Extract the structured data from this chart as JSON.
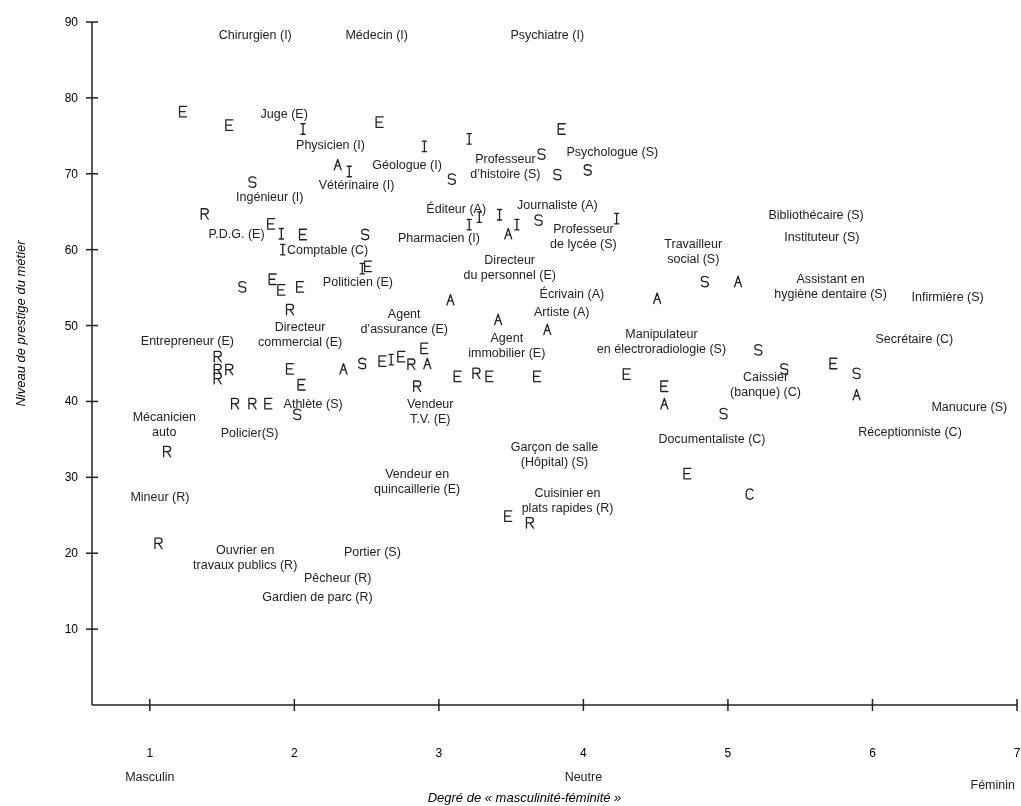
{
  "chart_data": {
    "type": "scatter",
    "xlabel": "Degré de « masculinité-féminité »",
    "ylabel": "Niveau de prestige du métier",
    "xlim": [
      0.6,
      7
    ],
    "xticks": [
      1,
      2,
      3,
      4,
      5,
      6,
      7
    ],
    "ylim": [
      0,
      90
    ],
    "yticks": [
      10,
      20,
      30,
      40,
      50,
      60,
      70,
      80,
      90
    ],
    "grid": false,
    "series": [
      {
        "color": "#222222",
        "x": [
          1.38,
          1.97,
          1.47,
          1.47,
          1.55,
          1.47,
          2.81,
          1.59,
          1.71,
          2.85,
          1.12,
          1.06,
          3.26,
          3.63
        ],
        "values": [
          64.7,
          52.1,
          45.9,
          44.2,
          44.2,
          43.0,
          44.9,
          39.7,
          39.7,
          42.0,
          33.4,
          21.3,
          43.7,
          24.0
        ]
      },
      {
        "color": "#222222",
        "x": [
          2.06,
          2.9,
          2.38,
          1.91,
          1.92,
          2.47,
          2.67,
          3.21,
          3.28,
          3.42,
          3.21,
          3.54,
          4.23
        ],
        "values": [
          75.9,
          73.6,
          70.3,
          62.1,
          60.0,
          57.5,
          45.5,
          74.6,
          64.3,
          64.6,
          63.3,
          63.3,
          64.1
        ]
      },
      {
        "color": "#222222",
        "x": [
          2.3,
          3.48,
          5.07,
          3.08,
          4.51,
          2.34,
          2.92,
          3.41,
          3.75,
          4.56,
          5.89
        ],
        "values": [
          71.2,
          62.1,
          55.8,
          53.4,
          53.6,
          44.3,
          45.0,
          50.8,
          49.5,
          39.7,
          40.9
        ]
      },
      {
        "color": "#222222",
        "x": [
          1.71,
          2.49,
          1.64,
          3.71,
          3.09,
          3.82,
          4.03,
          3.69,
          4.84,
          2.47,
          2.02,
          4.97,
          5.21,
          5.39,
          5.89
        ],
        "values": [
          68.9,
          62.0,
          55.1,
          72.6,
          69.3,
          69.9,
          70.5,
          63.9,
          55.8,
          45.0,
          38.3,
          38.4,
          46.8,
          44.3,
          43.7
        ]
      },
      {
        "color": "#222222",
        "x": [
          1.23,
          1.55,
          2.59,
          1.84,
          2.06,
          2.51,
          1.85,
          1.91,
          2.04,
          3.85,
          1.97,
          2.61,
          2.74,
          2.9,
          2.05,
          1.82,
          3.13,
          3.35,
          3.68,
          4.3,
          4.56,
          4.72,
          3.48,
          5.73
        ],
        "values": [
          78.2,
          76.4,
          76.8,
          63.4,
          62.0,
          57.8,
          56.1,
          54.7,
          55.1,
          75.9,
          44.3,
          45.3,
          45.9,
          47.0,
          42.2,
          39.7,
          43.3,
          43.3,
          43.3,
          43.6,
          42.0,
          30.5,
          24.9,
          45.0
        ]
      },
      {
        "color": "#222222",
        "x": [
          5.15
        ],
        "values": [
          27.8
        ]
      }
    ],
    "annotations": [
      "Chirurgien (I)",
      "Médecin (I)",
      "Psychiatre (I)",
      "Juge (E)",
      "Physicien (I)",
      "Géologue (I)",
      "Vétérinaire (I)",
      "Professeur\nd’histoire (S)",
      "Psychologue (S)",
      "Ingénieur (I)",
      "P.D.G. (E)",
      "Comptable (C)",
      "Éditeur (A)",
      "Pharmacien (I)",
      "Journaliste (A)",
      "Professeur\nde lycée (S)",
      "Directeur\ndu personnel (E)",
      "Travailleur\nsocial (S)",
      "Bibliothécaire (S)",
      "Instituteur (S)",
      "Assistant en\nhygiène dentaire (S)",
      "Infirmière (S)",
      "Politicien (E)",
      "Écrivain (A)",
      "Artiste (A)",
      "Agent\nd’assurance (E)",
      "Directeur\ncommercial (E)",
      "Entrepreneur (E)",
      "Agent\nimmobilier (E)",
      "Manipulateur\nen électroradiologie (S)",
      "Secrétaire (C)",
      "Caissier\n(banque) (C)",
      "Mécanicien\nauto",
      "Athlète (S)",
      "Policier(S)",
      "Vendeur\nT.V. (E)",
      "Garçon de salle\n(Hôpital) (S)",
      "Documentaliste (C)",
      "Manucure (S)",
      "Réceptionniste (C)",
      "Mineur (R)",
      "Vendeur en\nquincaillerie (E)",
      "Cuisinier en\nplats rapides (R)",
      "Ouvrier en\ntravaux publics (R)",
      "Portier (S)",
      "Pêcheur (R)",
      "Gardien de parc (R)",
      "Masculin",
      "Neutre",
      "Féminin"
    ]
  }
}
